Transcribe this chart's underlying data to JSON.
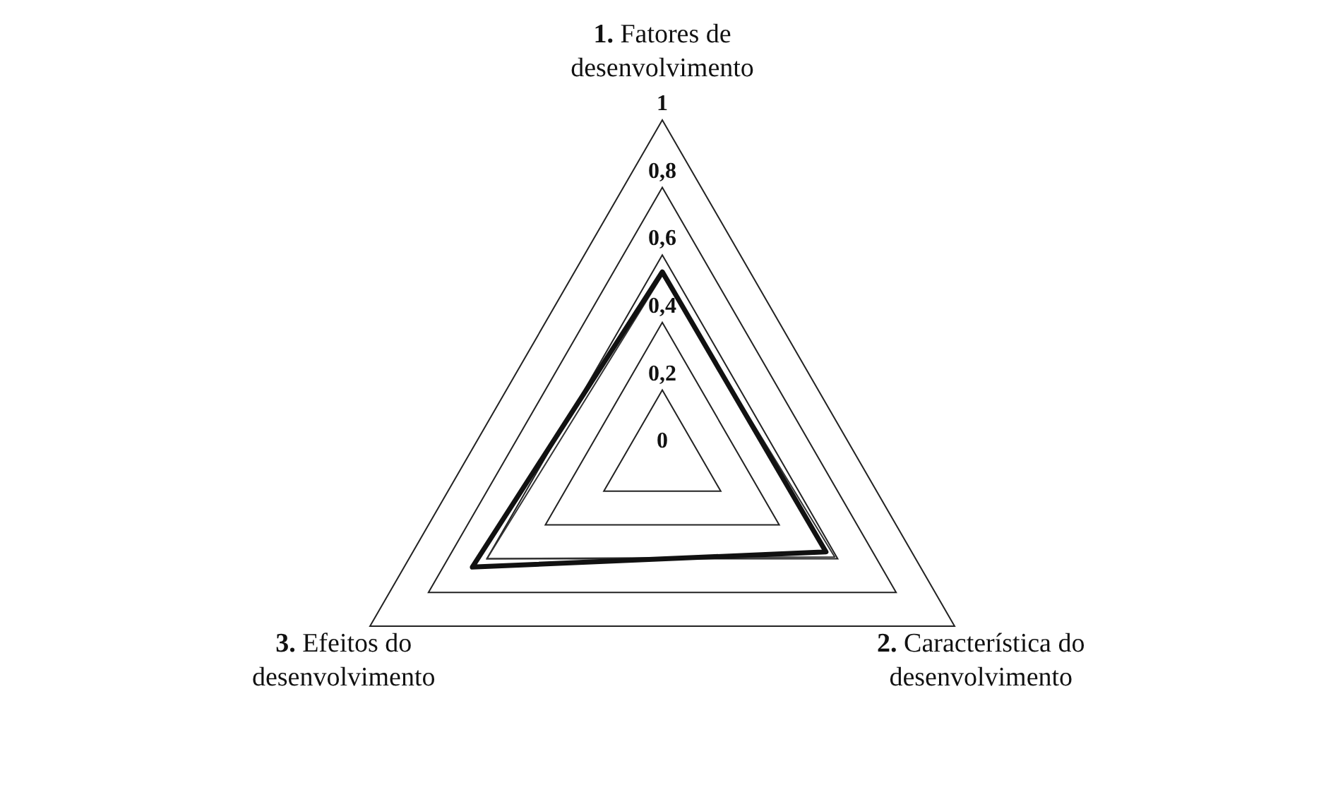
{
  "chart_data": {
    "type": "radar",
    "categories": [
      "1. Fatores de desenvolvimento",
      "2. Característica do desenvolvimento",
      "3. Efeitos do desenvolvimento"
    ],
    "series": [
      {
        "color": "#111111",
        "values": [
          0.55,
          0.56,
          0.65
        ]
      },
      {
        "color": "#333333",
        "values": [
          0.54,
          0.59,
          0.6
        ]
      }
    ],
    "ylim": [
      0,
      1
    ],
    "yticks": [
      {
        "value": 0,
        "label": "0"
      },
      {
        "value": 0.2,
        "label": "0,2"
      },
      {
        "value": 0.4,
        "label": "0,4"
      },
      {
        "value": 0.6,
        "label": "0,6"
      },
      {
        "value": 0.8,
        "label": "0,8"
      },
      1
    ],
    "grid": true,
    "legend": false
  }
}
